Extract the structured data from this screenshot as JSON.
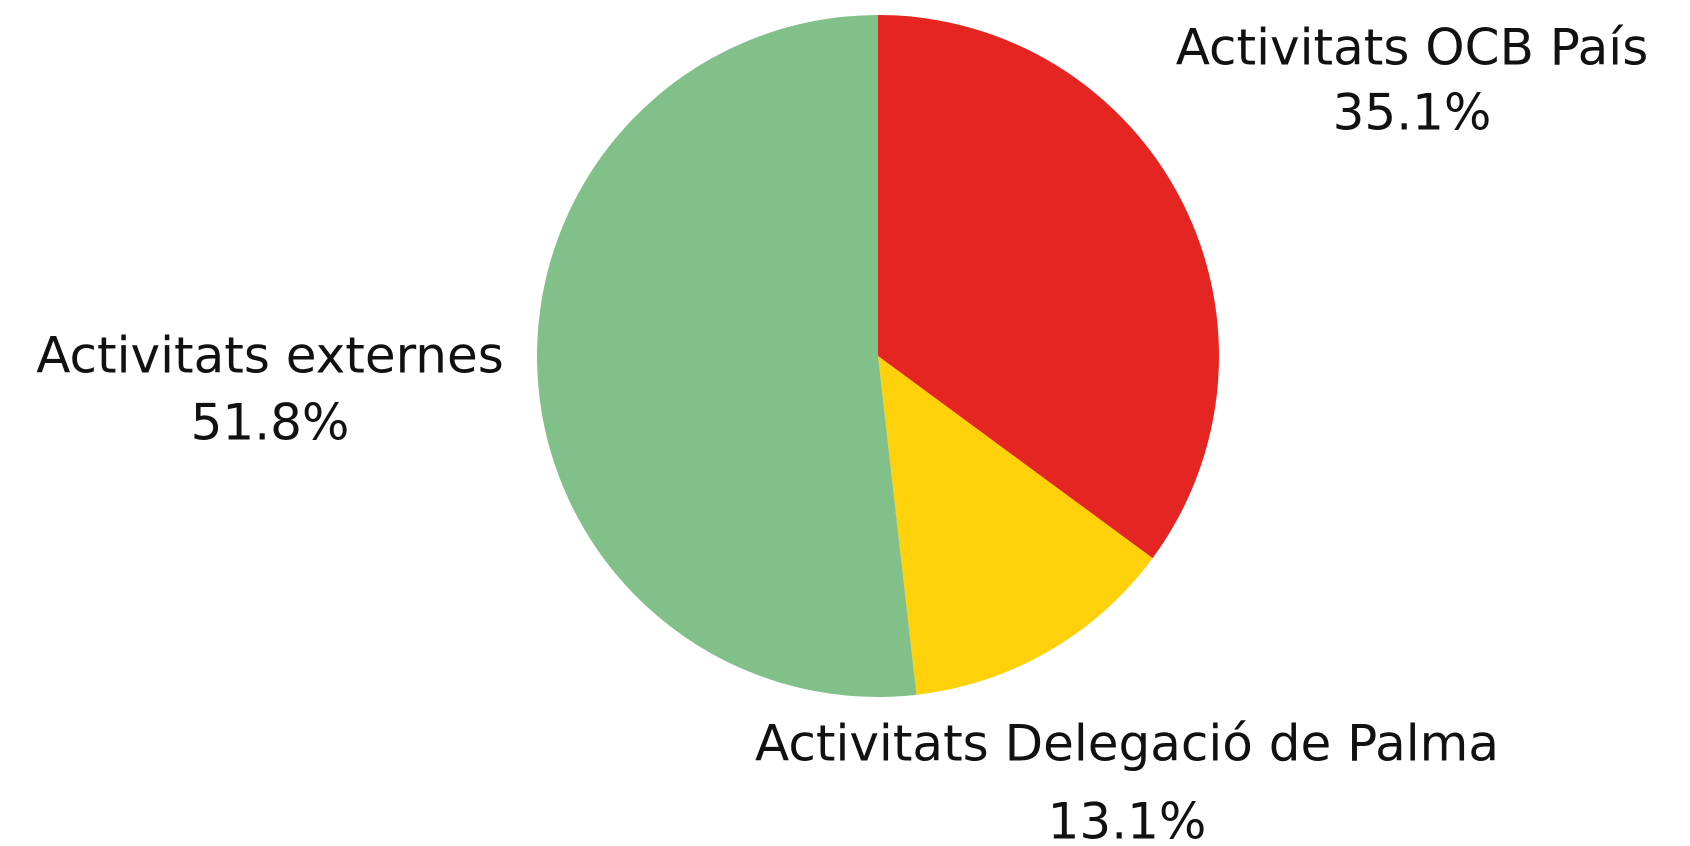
{
  "chart_data": {
    "type": "pie",
    "categories": [
      "Activitats OCB País",
      "Activitats Delegació de Palma",
      "Activitats externes"
    ],
    "values": [
      35.1,
      13.1,
      51.8
    ],
    "value_labels": [
      "35.1%",
      "13.1%",
      "51.8%"
    ],
    "colors": [
      "#e52521",
      "#ffd10a",
      "#82c08a"
    ]
  }
}
